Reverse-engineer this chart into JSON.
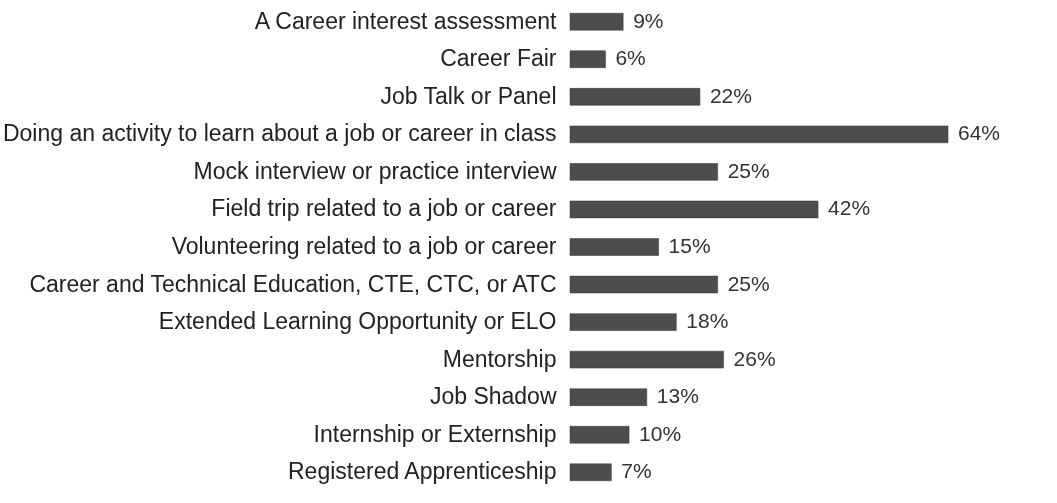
{
  "chart_data": {
    "type": "bar",
    "orientation": "horizontal",
    "categories": [
      "A Career interest assessment",
      "Career Fair",
      "Job Talk or Panel",
      "Doing an activity to learn about a job or career in class",
      "Mock interview or practice interview",
      "Field trip related to a job or career",
      "Volunteering related to a job or career",
      "Career and Technical Education, CTE, CTC, or ATC",
      "Extended Learning Opportunity or ELO",
      "Mentorship",
      "Job Shadow",
      "Internship or Externship",
      "Registered Apprenticeship"
    ],
    "values": [
      9,
      6,
      22,
      64,
      25,
      42,
      15,
      25,
      18,
      26,
      13,
      10,
      7
    ],
    "value_labels": [
      "9%",
      "6%",
      "22%",
      "64%",
      "25%",
      "42%",
      "15%",
      "25%",
      "18%",
      "26%",
      "13%",
      "10%",
      "7%"
    ],
    "color": "#4d4d4d"
  }
}
